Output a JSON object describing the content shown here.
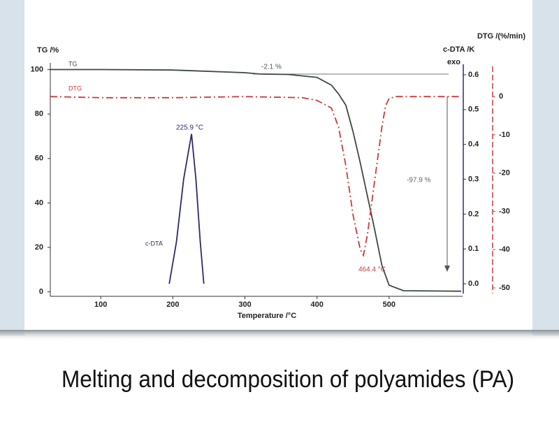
{
  "caption": "Melting and decomposition of polyamides (PA)",
  "chart_data": {
    "type": "line",
    "x_label": "Temperature /°C",
    "y_label": "TG /%",
    "y2_label": "c-DTA /K",
    "y2_note": "exo",
    "y3_label": "DTG /(%/min)",
    "xlim": [
      30,
      600
    ],
    "xticks": [
      100,
      200,
      300,
      400,
      500
    ],
    "ylim": [
      -2,
      103
    ],
    "yticks": [
      0,
      20,
      40,
      60,
      80,
      100
    ],
    "y2lim": [
      -0.036,
      0.634
    ],
    "y2ticks": [
      {
        "value": 0,
        "label": "0.0"
      },
      0.1,
      0.2,
      0.3,
      0.4,
      0.5,
      0.6
    ],
    "y3lim": [
      -52.2,
      8.8
    ],
    "y3ticks": [
      0,
      -10,
      -20,
      -30,
      -40,
      -50
    ],
    "series": [
      {
        "name": "TG",
        "color": "#3c4a40",
        "axis": "y",
        "x": [
          30,
          100,
          200,
          300,
          320,
          360,
          400,
          420,
          430,
          440,
          450,
          460,
          470,
          480,
          490,
          500,
          520,
          600
        ],
        "values": [
          100,
          100,
          99.8,
          98.6,
          98,
          97.8,
          96.5,
          93,
          89,
          84,
          72,
          58,
          43,
          28,
          12,
          3,
          0.5,
          0.3
        ]
      },
      {
        "name": "DTG",
        "color": "#cc3b3b",
        "axis": "y3",
        "dashed": true,
        "x": [
          30,
          100,
          200,
          300,
          380,
          400,
          420,
          430,
          440,
          450,
          460,
          464.4,
          470,
          480,
          490,
          495,
          500,
          510,
          600
        ],
        "values": [
          0,
          -0.3,
          -0.3,
          0,
          -0.3,
          -1,
          -3,
          -8,
          -18,
          -31,
          -40,
          -41.5,
          -36,
          -22,
          -8,
          -2.5,
          -0.5,
          0,
          0
        ]
      },
      {
        "name": "c-DTA",
        "color": "#2b2b6e",
        "axis": "y2",
        "x": [
          195,
          205,
          215,
          225.9,
          232,
          238,
          243
        ],
        "values": [
          0,
          0.12,
          0.3,
          0.43,
          0.3,
          0.12,
          0
        ]
      }
    ],
    "annotations": [
      "-2.1 %",
      "225.9 °C",
      "464.4 °C",
      "-97.9 %"
    ]
  }
}
